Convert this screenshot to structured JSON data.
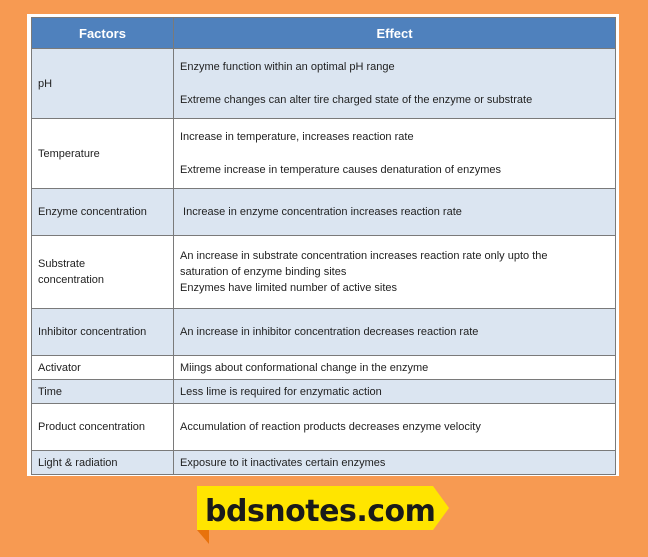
{
  "table": {
    "headers": {
      "factors": "Factors",
      "effect": "Effect"
    },
    "rows": [
      {
        "factor": "pH",
        "effects": [
          "Enzyme function within an optimal pH range",
          "Extreme changes can alter tire charged state of the enzyme or substrate"
        ]
      },
      {
        "factor": "Temperature",
        "effects": [
          "Increase in temperature, increases reaction rate",
          "Extreme increase in temperature causes denaturation of enzymes"
        ]
      },
      {
        "factor": "Enzyme concentration",
        "effects": [
          " Increase in enzyme concentration increases reaction rate"
        ]
      },
      {
        "factor_lines": [
          "Substrate",
          "concentration"
        ],
        "effects": [
          "An increase in substrate concentration increases reaction rate only upto the",
          "saturation of enzyme binding sites",
          "Enzymes have limited number of active sites"
        ]
      },
      {
        "factor": "Inhibitor concentration",
        "effects": [
          "An increase in inhibitor concentration decreases reaction rate"
        ]
      },
      {
        "factor": "Activator",
        "effects": [
          "Miings about conformational change in the enzyme"
        ]
      },
      {
        "factor": "Time",
        "effects": [
          "Less lime is required for enzymatic action"
        ]
      },
      {
        "factor": "Product concentration",
        "effects": [
          "Accumulation of reaction products decreases enzyme velocity"
        ]
      },
      {
        "factor": "Light & radiation",
        "effects": [
          "Exposure to it inactivates certain enzymes"
        ]
      }
    ]
  },
  "logo": {
    "text": "bdsnotes.com"
  },
  "colors": {
    "page_background": "#f79a52",
    "header_background": "#4f81bd",
    "row_shaded": "#dbe5f1",
    "logo_yellow": "#ffe500",
    "logo_shadow": "#e8720c"
  }
}
